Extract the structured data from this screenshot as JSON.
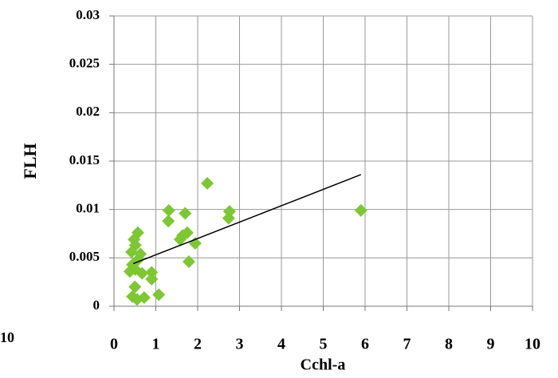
{
  "chart_data": {
    "type": "scatter",
    "x_label": "Cchl-a",
    "y_label": "FLH",
    "x": [
      2.23,
      1.31,
      1.3,
      1.7,
      2.76,
      2.74,
      5.9,
      1.75,
      1.64,
      1.58,
      1.94,
      1.79,
      0.57,
      0.48,
      0.51,
      0.42,
      0.63,
      0.57,
      0.44,
      0.51,
      0.67,
      0.38,
      0.9,
      0.9,
      0.5,
      0.44,
      0.55,
      0.72,
      1.07
    ],
    "values": [
      0.0127,
      0.0099,
      0.0088,
      0.0096,
      0.0098,
      0.0091,
      0.0099,
      0.0076,
      0.0073,
      0.0069,
      0.0065,
      0.0046,
      0.0076,
      0.0069,
      0.0063,
      0.0056,
      0.0054,
      0.0048,
      0.0043,
      0.0038,
      0.0034,
      0.0036,
      0.0035,
      0.0028,
      0.002,
      0.001,
      0.0007,
      0.0009,
      0.0012
    ],
    "color": "#7dc832",
    "trendline": {
      "x": [
        0.46,
        5.9
      ],
      "y": [
        0.0044,
        0.0136
      ],
      "color": "#000000"
    },
    "xlim": [
      0,
      10
    ],
    "xticks": [
      0,
      1,
      2,
      3,
      4,
      5,
      6,
      7,
      8,
      9,
      10
    ],
    "ylim": [
      0,
      0.03
    ],
    "yticks": [
      0,
      0.005,
      0.01,
      0.015,
      0.02,
      0.025,
      0.03
    ],
    "grid": true,
    "neighbor_chart_tick": "10"
  }
}
